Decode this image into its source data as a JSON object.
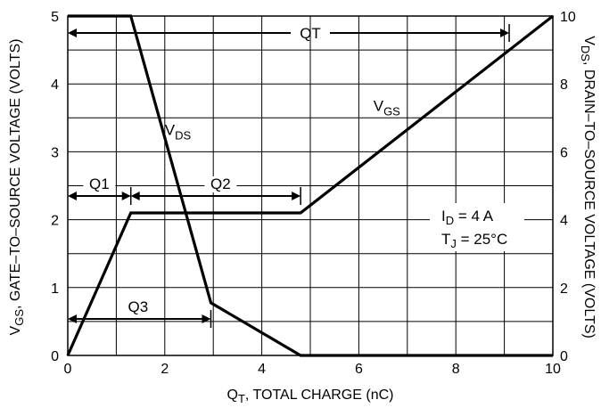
{
  "chart_data": {
    "type": "line",
    "xlabel": {
      "main": "Q",
      "sub": "T",
      "rest": ", TOTAL CHARGE (nC)"
    },
    "ylabel_left": {
      "main": "V",
      "sub": "GS",
      "rest": ", GATE–TO–SOURCE VOLTAGE (VOLTS)"
    },
    "ylabel_right": {
      "main": "V",
      "sub": "DS",
      "rest": ", DRAIN–TO–SOURCE VOLTAGE (VOLTS)"
    },
    "xlim": [
      0,
      10
    ],
    "ylim_left": [
      0,
      5
    ],
    "ylim_right": [
      0,
      10
    ],
    "x_ticks": [
      "0",
      "2",
      "4",
      "6",
      "8",
      "10"
    ],
    "y_left_ticks": [
      "0",
      "1",
      "2",
      "3",
      "4",
      "5"
    ],
    "y_right_ticks": [
      "0",
      "2",
      "4",
      "6",
      "8",
      "10"
    ],
    "grid": true,
    "series": [
      {
        "name": "VGS",
        "label_main": "V",
        "label_sub": "GS",
        "axis": "left",
        "points": [
          [
            0,
            0
          ],
          [
            1.3,
            2.1
          ],
          [
            4.8,
            2.1
          ],
          [
            10,
            5
          ]
        ]
      },
      {
        "name": "VDS",
        "label_main": "V",
        "label_sub": "DS",
        "axis": "right",
        "points": [
          [
            0,
            10
          ],
          [
            1.3,
            10
          ],
          [
            2.95,
            1.55
          ],
          [
            4.8,
            0
          ],
          [
            10,
            0
          ]
        ]
      }
    ],
    "annotations": {
      "qt": {
        "label": "QT",
        "from": 0,
        "to": 9.1
      },
      "q1": {
        "label": "Q1",
        "from": 0,
        "to": 1.3
      },
      "q2": {
        "label": "Q2",
        "from": 1.3,
        "to": 4.8
      },
      "q3": {
        "label": "Q3",
        "from": 0,
        "to": 2.95
      },
      "condition_id": {
        "main": "I",
        "sub": "D",
        "rest": " = 4 A"
      },
      "condition_tj": {
        "main": "T",
        "sub": "J",
        "rest": " = 25°C"
      }
    }
  }
}
